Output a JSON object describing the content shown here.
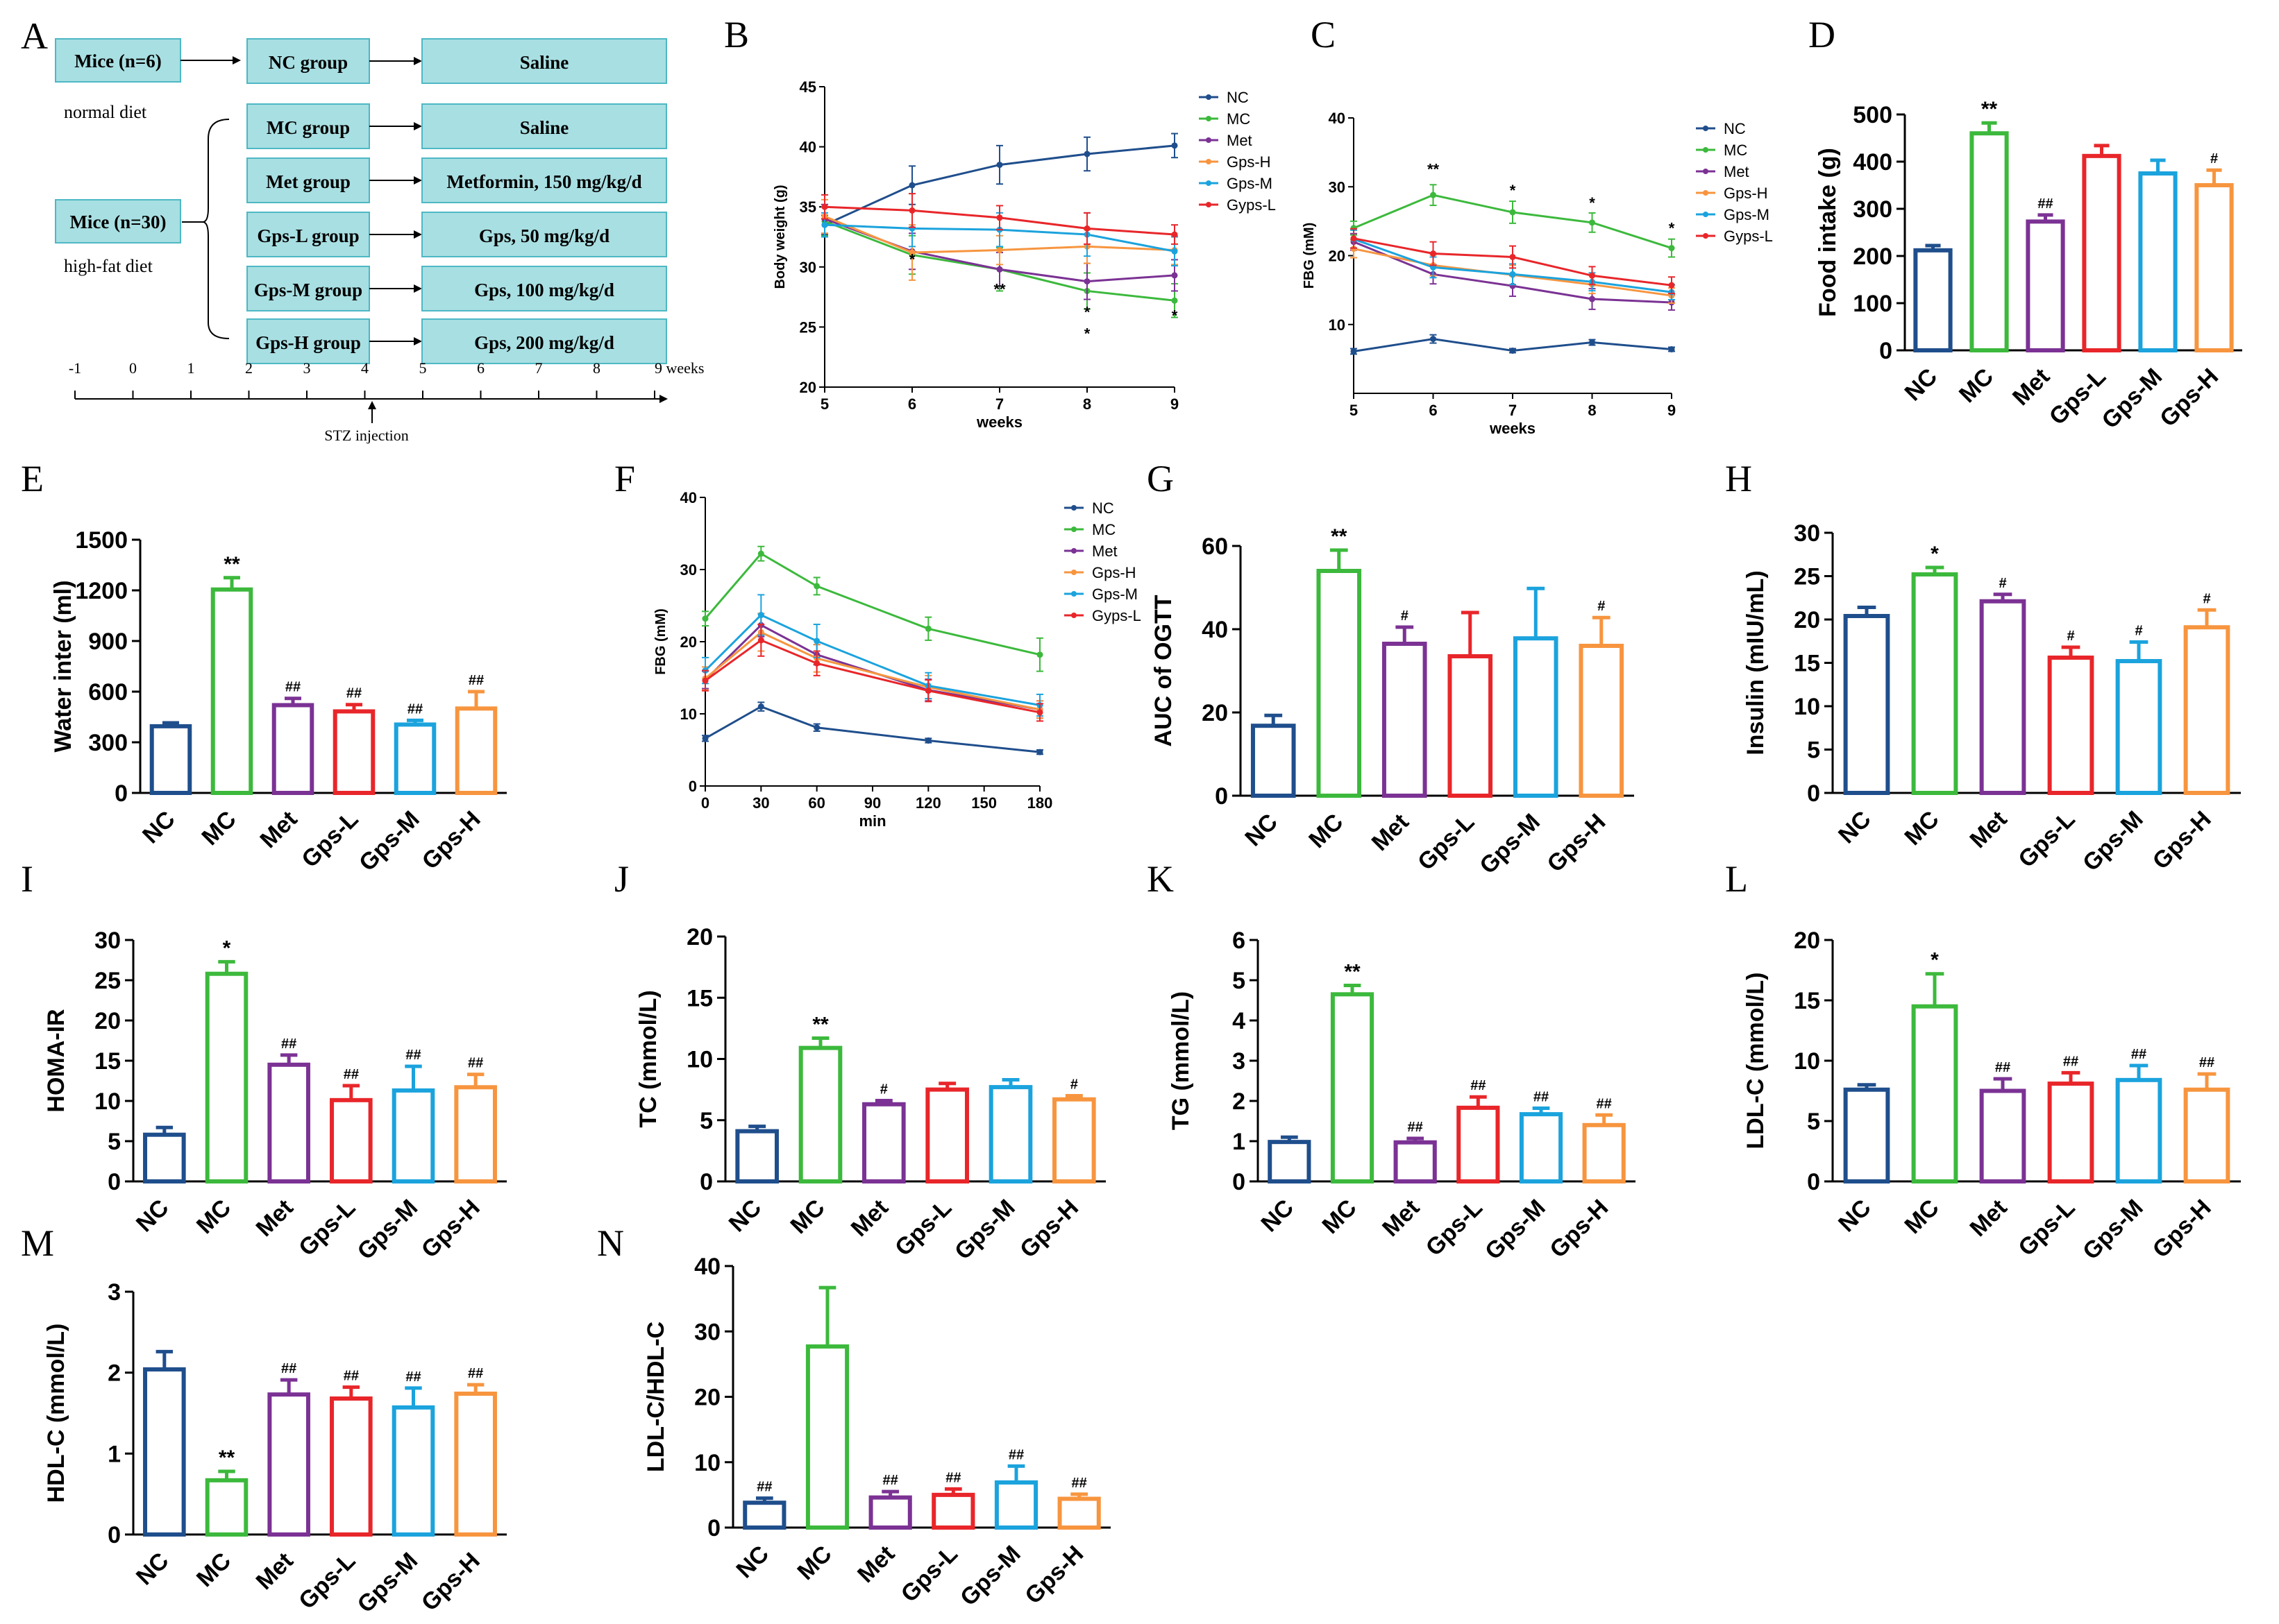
{
  "colors": {
    "NC": "#1f4e8c",
    "MC": "#3cb93c",
    "Met": "#7b3294",
    "Gps-L": "#e8262a",
    "Gps-M": "#1ba3dd",
    "Gps-H": "#f7953f",
    "box_fill": "#a8dfe2",
    "box_stroke": "#4db8c4"
  },
  "panelA": {
    "letter": "A",
    "mice_normal": "Mice (n=6)",
    "normal_diet": "normal diet",
    "mice_hfd": "Mice (n=30)",
    "hfd": "high-fat diet",
    "groups": [
      "NC group",
      "MC group",
      "Met group",
      "Gps-L group",
      "Gps-M group",
      "Gps-H group"
    ],
    "treatments": [
      "Saline",
      "Saline",
      "Metformin, 150 mg/kg/d",
      "Gps, 50 mg/kg/d",
      "Gps, 100 mg/kg/d",
      "Gps, 200 mg/kg/d"
    ],
    "timeline_ticks": [
      "-1",
      "0",
      "1",
      "2",
      "3",
      "4",
      "5",
      "6",
      "7",
      "8",
      "9 weeks"
    ],
    "stz": "STZ injection"
  },
  "chart_data": [
    {
      "id": "B",
      "type": "line",
      "letter": "B",
      "xlabel": "weeks",
      "ylabel": "Body weight (g)",
      "x": [
        5,
        6,
        7,
        8,
        9
      ],
      "xlim": [
        5,
        9
      ],
      "ylim": [
        20,
        45
      ],
      "xticks": [
        5,
        6,
        7,
        8,
        9
      ],
      "yticks": [
        20,
        25,
        30,
        35,
        40,
        45
      ],
      "legend": [
        "NC",
        "MC",
        "Met",
        "Gps-H",
        "Gps-M",
        "Gyps-L"
      ],
      "series": [
        {
          "name": "NC",
          "color": "#1f4e8c",
          "values": [
            33.5,
            36.8,
            38.5,
            39.4,
            40.1
          ],
          "err": [
            0.8,
            1.6,
            1.6,
            1.4,
            1.0
          ]
        },
        {
          "name": "MC",
          "color": "#3cb93c",
          "values": [
            33.8,
            31.0,
            29.8,
            28.0,
            27.2
          ],
          "err": [
            1.2,
            1.6,
            1.8,
            1.5,
            1.4
          ]
        },
        {
          "name": "Met",
          "color": "#7b3294",
          "values": [
            34.0,
            31.3,
            29.8,
            28.8,
            29.3
          ],
          "err": [
            1.2,
            1.5,
            1.4,
            1.5,
            1.3
          ]
        },
        {
          "name": "Gps-H",
          "color": "#f7953f",
          "values": [
            34.2,
            31.2,
            31.4,
            31.7,
            31.4
          ],
          "err": [
            1.4,
            2.3,
            1.2,
            1.4,
            1.2
          ]
        },
        {
          "name": "Gps-M",
          "color": "#1ba3dd",
          "values": [
            33.5,
            33.2,
            33.1,
            32.7,
            31.3
          ],
          "err": [
            1.0,
            1.5,
            1.4,
            1.8,
            1.2
          ]
        },
        {
          "name": "Gyps-L",
          "color": "#e8262a",
          "values": [
            35.0,
            34.7,
            34.1,
            33.2,
            32.7
          ],
          "err": [
            1.0,
            1.4,
            1.0,
            1.3,
            0.8
          ]
        }
      ],
      "annotations": [
        {
          "x": 6,
          "y": 30.2,
          "text": "*"
        },
        {
          "x": 7,
          "y": 27.7,
          "text": "**"
        },
        {
          "x": 8,
          "y": 25.8,
          "text": "*"
        },
        {
          "x": 8,
          "y": 24.0,
          "text": "*"
        },
        {
          "x": 9,
          "y": 25.5,
          "text": "*"
        }
      ]
    },
    {
      "id": "C",
      "type": "line",
      "letter": "C",
      "xlabel": "weeks",
      "ylabel": "FBG (mM)",
      "x": [
        5,
        6,
        7,
        8,
        9
      ],
      "xlim": [
        5,
        9
      ],
      "ylim": [
        0,
        40
      ],
      "xticks": [
        5,
        6,
        7,
        8,
        9
      ],
      "yticks": [
        10,
        20,
        30,
        40
      ],
      "legend": [
        "NC",
        "MC",
        "Met",
        "Gps-H",
        "Gps-M",
        "Gyps-L"
      ],
      "series": [
        {
          "name": "NC",
          "color": "#1f4e8c",
          "values": [
            6.1,
            7.9,
            6.2,
            7.4,
            6.4
          ],
          "err": [
            0.4,
            0.6,
            0.3,
            0.4,
            0.3
          ]
        },
        {
          "name": "MC",
          "color": "#3cb93c",
          "values": [
            24.0,
            28.8,
            26.3,
            24.8,
            21.1
          ],
          "err": [
            1.0,
            1.5,
            1.6,
            1.4,
            1.3
          ]
        },
        {
          "name": "Met",
          "color": "#7b3294",
          "values": [
            22.0,
            17.3,
            15.6,
            13.7,
            13.2
          ],
          "err": [
            1.2,
            1.4,
            1.5,
            1.5,
            1.1
          ]
        },
        {
          "name": "Gps-H",
          "color": "#f7953f",
          "values": [
            21.0,
            18.6,
            17.2,
            15.8,
            14.2
          ],
          "err": [
            1.3,
            1.5,
            1.4,
            1.3,
            1.1
          ]
        },
        {
          "name": "Gps-M",
          "color": "#1ba3dd",
          "values": [
            22.4,
            18.3,
            17.3,
            16.2,
            14.7
          ],
          "err": [
            1.3,
            1.5,
            1.5,
            1.3,
            1.1
          ]
        },
        {
          "name": "Gyps-L",
          "color": "#e8262a",
          "values": [
            22.5,
            20.3,
            19.8,
            17.1,
            15.7
          ],
          "err": [
            1.4,
            1.7,
            1.6,
            1.3,
            1.2
          ]
        }
      ],
      "annotations": [
        {
          "x": 6,
          "y": 31.8,
          "text": "**"
        },
        {
          "x": 7,
          "y": 28.7,
          "text": "*"
        },
        {
          "x": 8,
          "y": 26.9,
          "text": "*"
        },
        {
          "x": 9,
          "y": 23.2,
          "text": "*"
        }
      ]
    },
    {
      "id": "D",
      "type": "bar",
      "letter": "D",
      "ylabel": "Food intake (g)",
      "categories": [
        "NC",
        "MC",
        "Met",
        "Gps-L",
        "Gps-M",
        "Gps-H"
      ],
      "values": [
        212,
        460,
        273,
        412,
        375,
        350
      ],
      "err": [
        10,
        22,
        14,
        22,
        28,
        32
      ],
      "ylim": [
        0,
        500
      ],
      "yticks": [
        0,
        100,
        200,
        300,
        400,
        500
      ],
      "annotations": [
        "",
        "**",
        "##",
        "",
        "",
        "#"
      ]
    },
    {
      "id": "E",
      "type": "bar",
      "letter": "E",
      "ylabel": "Water inter (ml)",
      "categories": [
        "NC",
        "MC",
        "Met",
        "Gps-L",
        "Gps-M",
        "Gps-H"
      ],
      "values": [
        395,
        1205,
        520,
        483,
        405,
        500
      ],
      "err": [
        20,
        70,
        40,
        40,
        25,
        100
      ],
      "ylim": [
        0,
        1500
      ],
      "yticks": [
        0,
        300,
        600,
        900,
        1200,
        1500
      ],
      "annotations": [
        "",
        "**",
        "##",
        "##",
        "##",
        "##"
      ]
    },
    {
      "id": "F",
      "type": "line",
      "letter": "F",
      "xlabel": "min",
      "ylabel": "FBG (mM)",
      "x": [
        0,
        30,
        60,
        120,
        180
      ],
      "xlim": [
        0,
        180
      ],
      "ylim": [
        0,
        40
      ],
      "xticks": [
        0,
        30,
        60,
        90,
        120,
        150,
        180
      ],
      "yticks": [
        0,
        10,
        20,
        30,
        40
      ],
      "legend": [
        "NC",
        "MC",
        "Met",
        "Gps-H",
        "Gps-M",
        "Gyps-L"
      ],
      "series": [
        {
          "name": "NC",
          "color": "#1f4e8c",
          "values": [
            6.6,
            11.0,
            8.1,
            6.3,
            4.7
          ],
          "err": [
            0.4,
            0.6,
            0.5,
            0.3,
            0.3
          ]
        },
        {
          "name": "MC",
          "color": "#3cb93c",
          "values": [
            23.2,
            32.2,
            27.7,
            21.8,
            18.2
          ],
          "err": [
            1.0,
            1.0,
            1.2,
            1.6,
            2.3
          ]
        },
        {
          "name": "Met",
          "color": "#7b3294",
          "values": [
            14.7,
            22.3,
            18.2,
            13.3,
            10.6
          ],
          "err": [
            1.2,
            1.6,
            1.4,
            1.5,
            1.2
          ]
        },
        {
          "name": "Gps-H",
          "color": "#f7953f",
          "values": [
            14.9,
            21.3,
            17.7,
            13.7,
            10.6
          ],
          "err": [
            1.6,
            2.6,
            1.9,
            1.6,
            1.2
          ]
        },
        {
          "name": "Gps-M",
          "color": "#1ba3dd",
          "values": [
            16.0,
            23.7,
            20.1,
            13.9,
            11.2
          ],
          "err": [
            1.8,
            2.8,
            2.3,
            1.8,
            1.5
          ]
        },
        {
          "name": "Gyps-L",
          "color": "#e8262a",
          "values": [
            14.6,
            20.2,
            17.0,
            13.2,
            10.2
          ],
          "err": [
            1.4,
            2.2,
            1.7,
            1.5,
            1.2
          ]
        }
      ]
    },
    {
      "id": "G",
      "type": "bar",
      "letter": "G",
      "ylabel": "AUC of OGTT",
      "categories": [
        "NC",
        "MC",
        "Met",
        "Gps-L",
        "Gps-M",
        "Gps-H"
      ],
      "values": [
        16.8,
        54,
        36.5,
        33.5,
        37.8,
        36
      ],
      "err": [
        2.5,
        5,
        4,
        10.5,
        12,
        6.8
      ],
      "ylim": [
        0,
        60
      ],
      "yticks": [
        0,
        20,
        40,
        60
      ],
      "annotations": [
        "",
        "**",
        "#",
        "",
        "",
        "#"
      ]
    },
    {
      "id": "H",
      "type": "bar",
      "letter": "H",
      "ylabel": "Insulin (mIU/mL)",
      "categories": [
        "NC",
        "MC",
        "Met",
        "Gps-L",
        "Gps-M",
        "Gps-H"
      ],
      "values": [
        20.4,
        25.2,
        22.1,
        15.6,
        15.2,
        19.1
      ],
      "err": [
        1.0,
        0.8,
        0.8,
        1.2,
        2.2,
        2.0
      ],
      "ylim": [
        0,
        30
      ],
      "yticks": [
        0,
        5,
        10,
        15,
        20,
        25,
        30
      ],
      "annotations": [
        "",
        "*",
        "#",
        "#",
        "#",
        "#"
      ]
    },
    {
      "id": "I",
      "type": "bar",
      "letter": "I",
      "ylabel": "HOMA-IR",
      "categories": [
        "NC",
        "MC",
        "Met",
        "Gps-L",
        "Gps-M",
        "Gps-H"
      ],
      "values": [
        5.8,
        25.8,
        14.5,
        10.1,
        11.3,
        11.7
      ],
      "err": [
        0.9,
        1.5,
        1.2,
        1.8,
        3.0,
        1.6
      ],
      "ylim": [
        0,
        30
      ],
      "yticks": [
        0,
        5,
        10,
        15,
        20,
        25,
        30
      ],
      "annotations": [
        "",
        "*",
        "##",
        "##",
        "##",
        "##"
      ]
    },
    {
      "id": "J",
      "type": "bar",
      "letter": "J",
      "ylabel": "TC  (mmol/L)",
      "categories": [
        "NC",
        "MC",
        "Met",
        "Gps-L",
        "Gps-M",
        "Gps-H"
      ],
      "values": [
        4.1,
        10.9,
        6.3,
        7.5,
        7.7,
        6.7
      ],
      "err": [
        0.4,
        0.8,
        0.3,
        0.5,
        0.6,
        0.3
      ],
      "ylim": [
        0,
        20
      ],
      "yticks": [
        0,
        5,
        10,
        15,
        20
      ],
      "annotations": [
        "",
        "**",
        "#",
        "",
        "",
        "#"
      ]
    },
    {
      "id": "K",
      "type": "bar",
      "letter": "K",
      "ylabel": "TG  (mmol/L)",
      "categories": [
        "NC",
        "MC",
        "Met",
        "Gps-L",
        "Gps-M",
        "Gps-H"
      ],
      "values": [
        0.98,
        4.65,
        0.97,
        1.83,
        1.67,
        1.4
      ],
      "err": [
        0.12,
        0.22,
        0.1,
        0.27,
        0.15,
        0.25
      ],
      "ylim": [
        0,
        6
      ],
      "yticks": [
        0,
        1,
        2,
        3,
        4,
        5,
        6
      ],
      "annotations": [
        "",
        "**",
        "##",
        "##",
        "##",
        "##"
      ]
    },
    {
      "id": "L",
      "type": "bar",
      "letter": "L",
      "ylabel": "LDL-C  (mmol/L)",
      "categories": [
        "NC",
        "MC",
        "Met",
        "Gps-L",
        "Gps-M",
        "Gps-H"
      ],
      "values": [
        7.6,
        14.5,
        7.5,
        8.1,
        8.4,
        7.6
      ],
      "err": [
        0.4,
        2.7,
        1.0,
        0.9,
        1.2,
        1.3
      ],
      "ylim": [
        0,
        20
      ],
      "yticks": [
        0,
        5,
        10,
        15,
        20
      ],
      "annotations": [
        "",
        "*",
        "##",
        "##",
        "##",
        "##"
      ]
    },
    {
      "id": "M",
      "type": "bar",
      "letter": "M",
      "ylabel": "HDL-C  (mmol/L)",
      "categories": [
        "NC",
        "MC",
        "Met",
        "Gps-L",
        "Gps-M",
        "Gps-H"
      ],
      "values": [
        2.04,
        0.67,
        1.73,
        1.68,
        1.57,
        1.74
      ],
      "err": [
        0.22,
        0.11,
        0.18,
        0.14,
        0.24,
        0.11
      ],
      "ylim": [
        0,
        3
      ],
      "yticks": [
        0,
        1,
        2,
        3
      ],
      "annotations": [
        "",
        "**",
        "##",
        "##",
        "##",
        "##"
      ]
    },
    {
      "id": "N",
      "type": "bar",
      "letter": "N",
      "ylabel": "LDL-C/HDL-C",
      "categories": [
        "NC",
        "MC",
        "Met",
        "Gps-L",
        "Gps-M",
        "Gps-H"
      ],
      "values": [
        3.8,
        27.7,
        4.6,
        5.0,
        6.9,
        4.4
      ],
      "err": [
        0.7,
        9.0,
        0.9,
        0.9,
        2.5,
        0.7
      ],
      "ylim": [
        0,
        40
      ],
      "yticks": [
        0,
        10,
        20,
        30,
        40
      ],
      "annotations": [
        "##",
        "",
        "##",
        "##",
        "##",
        "##"
      ]
    }
  ]
}
